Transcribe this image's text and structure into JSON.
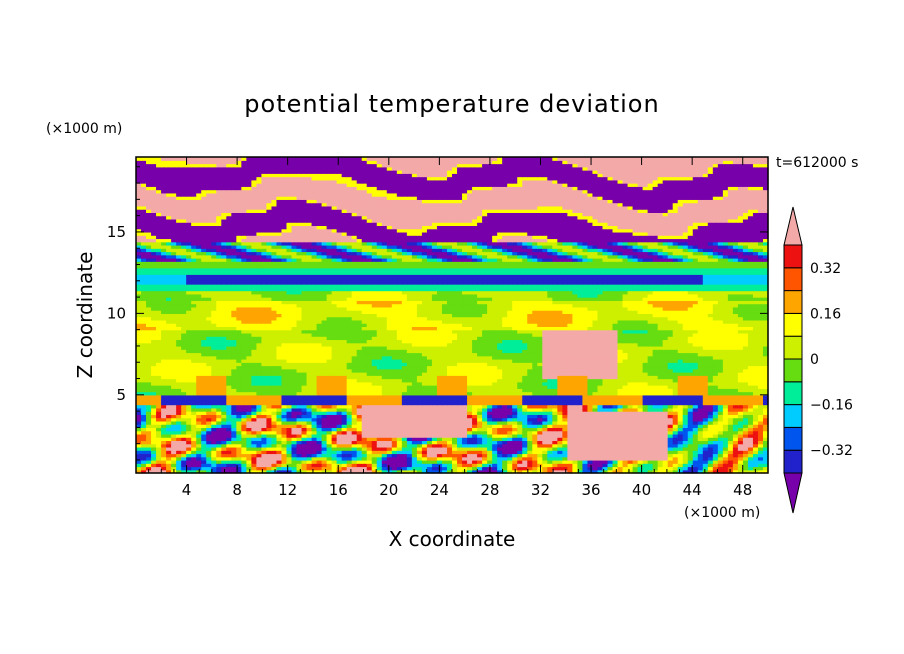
{
  "chart_data": {
    "type": "heatmap",
    "title": "potential temperature deviation",
    "xlabel": "X coordinate",
    "ylabel": "Z coordinate",
    "x_unit": "(×1000 m)",
    "y_unit": "(×1000 m)",
    "time_label": "t=612000 s",
    "xlim": [
      0,
      50
    ],
    "ylim": [
      0.2,
      19.6
    ],
    "x_ticks": [
      4,
      8,
      12,
      16,
      20,
      24,
      28,
      32,
      36,
      40,
      44,
      48
    ],
    "y_ticks": [
      5,
      10,
      15
    ],
    "colorbar": {
      "levels": [
        -0.4,
        -0.32,
        -0.24,
        -0.16,
        -0.08,
        0,
        0.08,
        0.16,
        0.24,
        0.32,
        0.4
      ],
      "tick_values": [
        -0.32,
        -0.16,
        0,
        0.16,
        0.32
      ],
      "tick_labels": [
        "−0.32",
        "−0.16",
        "0",
        "0.16",
        "0.32"
      ],
      "colors": [
        "#7700aa",
        "#2222cc",
        "#0055ee",
        "#00ccff",
        "#00ee99",
        "#66dd11",
        "#ccf000",
        "#ffff00",
        "#ffa500",
        "#ff5500",
        "#ee1111",
        "#f4a9a9"
      ],
      "under_color": "#7700aa",
      "over_color": "#f4a9a9"
    },
    "regions": [
      {
        "z_range": [
          14.5,
          19.6
        ],
        "description": "alternating bands",
        "values": [
          0.5,
          -0.5
        ]
      },
      {
        "z_range": [
          11.8,
          12.6
        ],
        "value": -0.35
      },
      {
        "z_range": [
          5,
          11.5
        ],
        "value": 0.05
      },
      {
        "z_range": [
          0.2,
          5
        ],
        "description": "turbulent mixed",
        "values": [
          -0.45,
          0.4
        ]
      }
    ]
  }
}
